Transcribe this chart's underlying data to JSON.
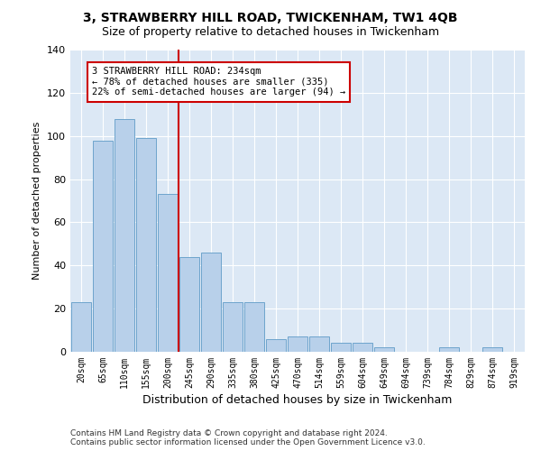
{
  "title1": "3, STRAWBERRY HILL ROAD, TWICKENHAM, TW1 4QB",
  "title2": "Size of property relative to detached houses in Twickenham",
  "xlabel": "Distribution of detached houses by size in Twickenham",
  "ylabel": "Number of detached properties",
  "categories": [
    "20sqm",
    "65sqm",
    "110sqm",
    "155sqm",
    "200sqm",
    "245sqm",
    "290sqm",
    "335sqm",
    "380sqm",
    "425sqm",
    "470sqm",
    "514sqm",
    "559sqm",
    "604sqm",
    "649sqm",
    "694sqm",
    "739sqm",
    "784sqm",
    "829sqm",
    "874sqm",
    "919sqm"
  ],
  "values": [
    23,
    98,
    108,
    99,
    73,
    44,
    46,
    23,
    23,
    6,
    7,
    7,
    4,
    4,
    2,
    0,
    0,
    2,
    0,
    2,
    0
  ],
  "bar_color": "#b8d0ea",
  "bar_edgecolor": "#6ea4cc",
  "vline_x_index": 5,
  "vline_color": "#cc0000",
  "annotation_text": "3 STRAWBERRY HILL ROAD: 234sqm\n← 78% of detached houses are smaller (335)\n22% of semi-detached houses are larger (94) →",
  "annotation_box_facecolor": "#ffffff",
  "annotation_box_edgecolor": "#cc0000",
  "footer": "Contains HM Land Registry data © Crown copyright and database right 2024.\nContains public sector information licensed under the Open Government Licence v3.0.",
  "plot_bg_color": "#dce8f5",
  "fig_bg_color": "#ffffff",
  "ylim": [
    0,
    140
  ],
  "yticks": [
    0,
    20,
    40,
    60,
    80,
    100,
    120,
    140
  ],
  "grid_color": "#ffffff",
  "title1_fontsize": 10,
  "title2_fontsize": 9,
  "ylabel_fontsize": 8,
  "xlabel_fontsize": 9,
  "tick_fontsize": 7,
  "footer_fontsize": 6.5,
  "ann_fontsize": 7.5
}
